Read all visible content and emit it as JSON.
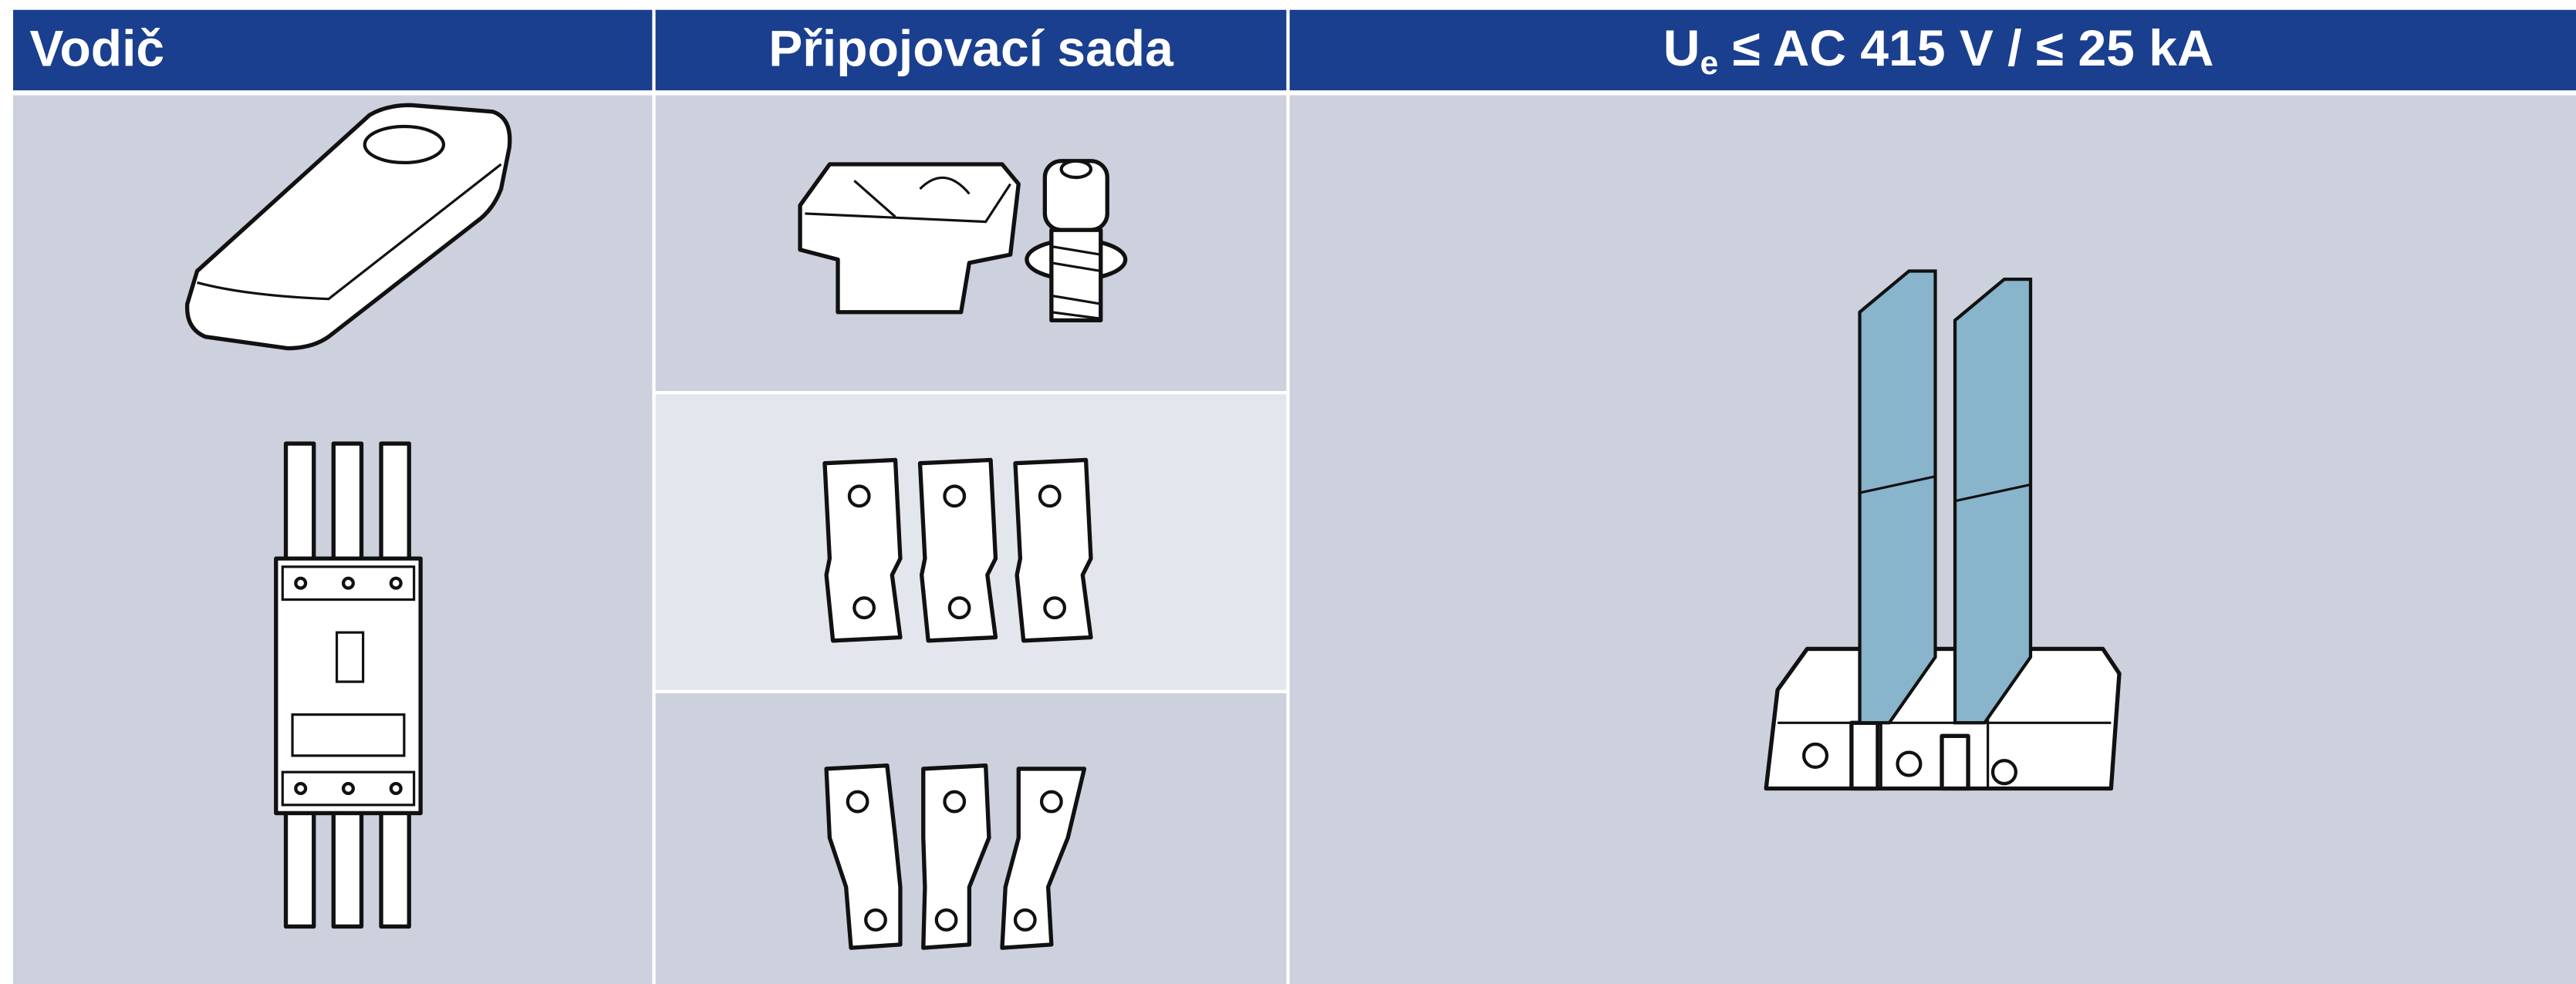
{
  "header": {
    "columns": [
      "Vodič",
      "Připojovací sada",
      {
        "main": "U",
        "sub": "e",
        "rest": " ≤ AC 415 V / ≤ 25 kA"
      }
    ]
  }
}
